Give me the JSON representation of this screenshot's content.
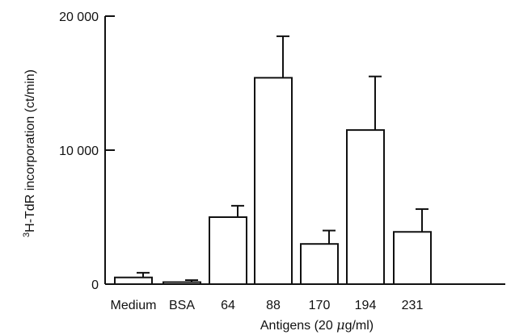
{
  "chart_data": {
    "type": "bar",
    "title": "",
    "xlabel_prefix": "Antigens (20 ",
    "xlabel_mu": "μ",
    "xlabel_suffix": "g/ml)",
    "ylabel_sup": "3",
    "ylabel_main": "H-TdR incorporation (ct/min)",
    "categories": [
      "Medium",
      "BSA",
      "64",
      "88",
      "170",
      "194",
      "231"
    ],
    "values": [
      500,
      150,
      5000,
      15400,
      3000,
      11500,
      3900
    ],
    "errors": [
      350,
      150,
      850,
      3100,
      1000,
      4000,
      1700
    ],
    "ylim": [
      0,
      20000
    ],
    "yticks": [
      0,
      10000,
      20000
    ],
    "ytick_labels": [
      "0",
      "10 000",
      "20 000"
    ],
    "grid": false,
    "colors": {
      "bar_fill": "#ffffff",
      "stroke": "#111111"
    }
  }
}
